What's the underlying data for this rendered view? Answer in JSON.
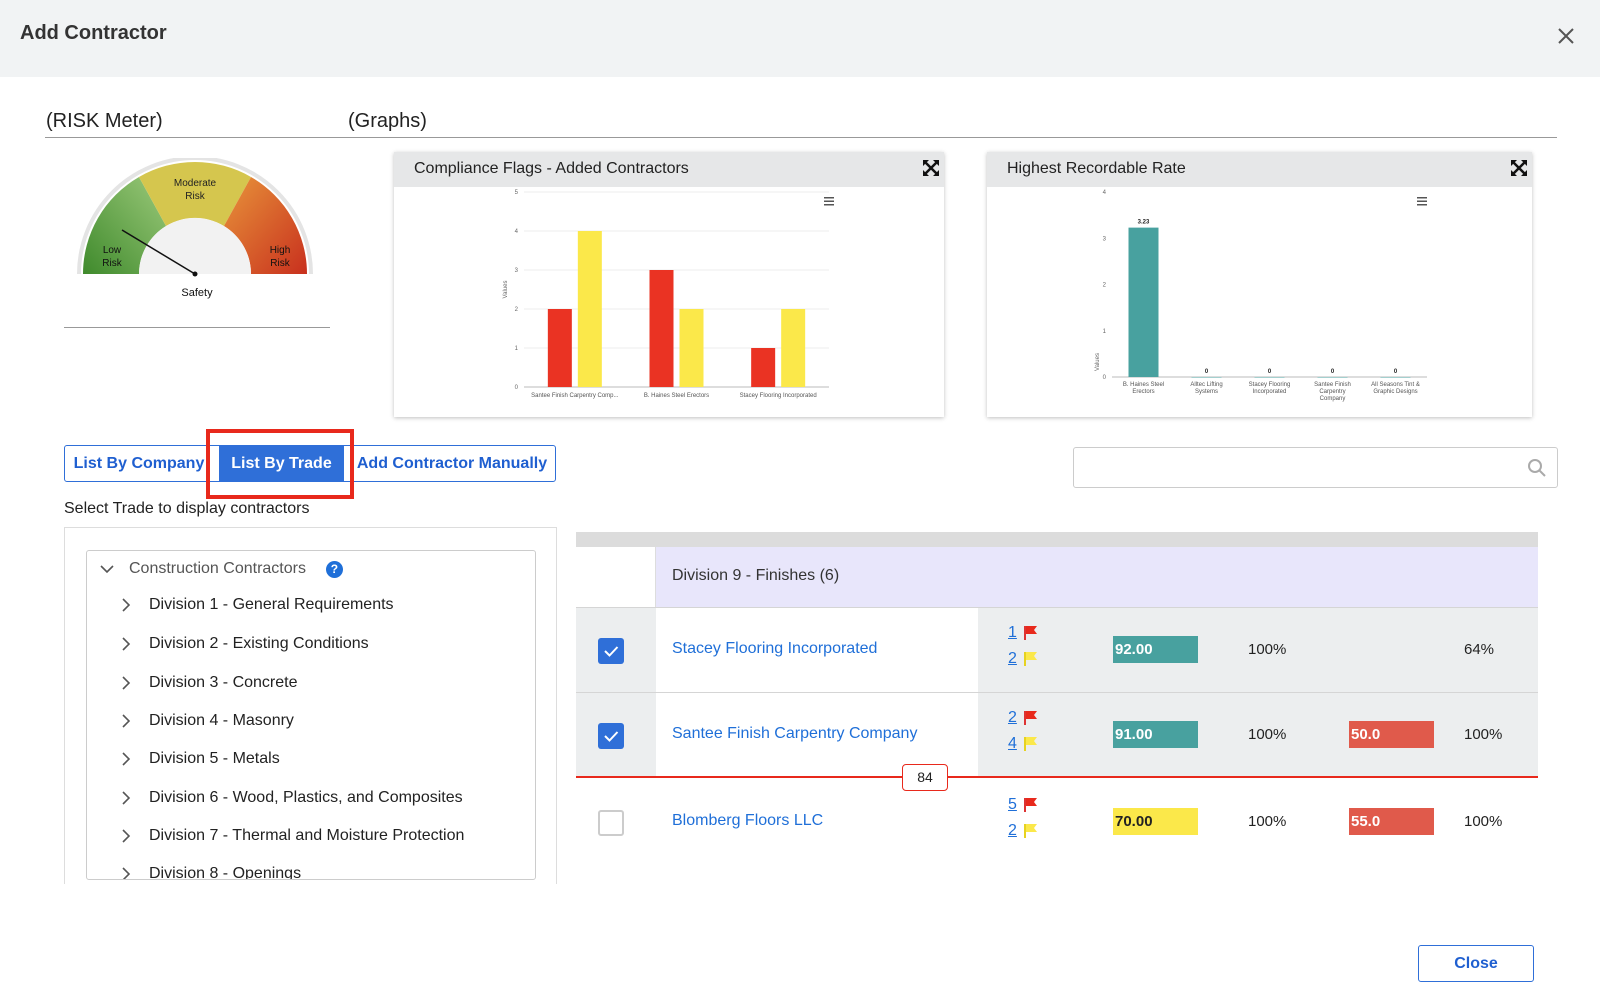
{
  "header": {
    "title": "Add Contractor"
  },
  "sections": {
    "risk_meter_label": "(RISK Meter)",
    "graphs_label": "(Graphs)"
  },
  "risk_meter": {
    "zones": {
      "low": [
        "Low",
        "Risk"
      ],
      "moderate": [
        "Moderate",
        "Risk"
      ],
      "high": [
        "High",
        "Risk"
      ]
    },
    "caption": "Safety",
    "colors": {
      "low": "#4f9a3a",
      "moderate": "#d8c84a",
      "high": "#d8442a"
    }
  },
  "charts": {
    "compliance": {
      "title": "Compliance Flags - Added Contractors",
      "chart_data": {
        "type": "bar",
        "categories": [
          "Santee Finish Carpentry Comp...",
          "B. Haines Steel Erectors",
          "Stacey Flooring Incorporated"
        ],
        "series": [
          {
            "color": "#ea3323",
            "values": [
              2,
              3,
              1
            ]
          },
          {
            "color": "#fbe84a",
            "values": [
              4,
              2,
              2
            ]
          }
        ],
        "ylabel": "Values",
        "ylim": [
          0,
          5
        ],
        "yticks": [
          "0",
          "1",
          "2",
          "3",
          "4",
          "5"
        ]
      }
    },
    "recordable": {
      "title": "Highest Recordable Rate",
      "chart_data": {
        "type": "bar",
        "categories": [
          [
            "B. Haines Steel",
            "Erectors"
          ],
          [
            "Alltec Lifting",
            "Systems"
          ],
          [
            "Stacey Flooring",
            "Incorporated"
          ],
          [
            "Santee Finish",
            "Carpentry",
            "Company"
          ],
          [
            "All Seasons Tint &",
            "Graphic Designs"
          ]
        ],
        "values": [
          3.23,
          0,
          0,
          0,
          0
        ],
        "data_labels": [
          "3.23",
          "0",
          "0",
          "0",
          "0"
        ],
        "color": "#48a19f",
        "ylabel": "Values",
        "ylim": [
          0,
          4
        ],
        "yticks": [
          "0",
          "1",
          "2",
          "3",
          "4"
        ]
      }
    }
  },
  "tabs": {
    "by_company": "List By Company",
    "by_trade": "List By Trade",
    "manual": "Add Contractor Manually"
  },
  "search": {
    "placeholder": ""
  },
  "select_label": "Select Trade to display contractors",
  "tree": {
    "root": "Construction Contractors",
    "help": "?",
    "items": [
      "Division 1 - General Requirements",
      "Division 2 - Existing Conditions",
      "Division 3 - Concrete",
      "Division 4 - Masonry",
      "Division 5 - Metals",
      "Division 6 - Wood, Plastics, and Composites",
      "Division 7 - Thermal and Moisture Protection",
      "Division 8 - Openings"
    ]
  },
  "grid": {
    "group": "Division 9 - Finishes (6)",
    "rows": [
      {
        "name": "Stacey Flooring Incorporated",
        "checked": true,
        "red_flags": "1",
        "yellow_flags": "2",
        "score": "92.00",
        "score_color": "teal",
        "pct1": "100%",
        "rate": "",
        "pct2": "64%"
      },
      {
        "name": "Santee Finish Carpentry Company",
        "checked": true,
        "red_flags": "2",
        "yellow_flags": "4",
        "score": "91.00",
        "score_color": "teal",
        "pct1": "100%",
        "rate": "50.0",
        "pct2": "100%"
      },
      {
        "name": "Blomberg Floors LLC",
        "checked": false,
        "red_flags": "5",
        "yellow_flags": "2",
        "score": "70.00",
        "score_color": "yellow",
        "pct1": "100%",
        "rate": "55.0",
        "pct2": "100%"
      }
    ],
    "threshold_marker": "84"
  },
  "footer": {
    "close_label": "Close"
  }
}
